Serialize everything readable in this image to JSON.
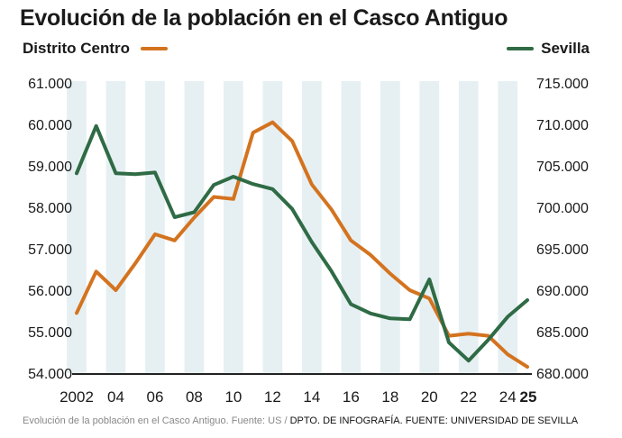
{
  "title": "Evolución de la población en el Casco Antiguo",
  "footer": {
    "source": "Evolución de la población en el Casco Antiguo. Fuente: US /",
    "org": "DPTO. DE INFOGRAFÍA. FUENTE: UNIVERSIDAD DE SEVILLA"
  },
  "colors": {
    "centro": "#d4731f",
    "sevilla": "#2f6b45",
    "band": "#e6f0f3",
    "axis": "#222222"
  },
  "chart_data": {
    "type": "line",
    "x": [
      2002,
      2003,
      2004,
      2005,
      2006,
      2007,
      2008,
      2009,
      2010,
      2011,
      2012,
      2013,
      2014,
      2015,
      2016,
      2017,
      2018,
      2019,
      2020,
      2021,
      2022,
      2023,
      2024,
      2025
    ],
    "x_tick_labels": [
      {
        "x": 2002,
        "label": "2002"
      },
      {
        "x": 2004,
        "label": "04"
      },
      {
        "x": 2006,
        "label": "06"
      },
      {
        "x": 2008,
        "label": "08"
      },
      {
        "x": 2010,
        "label": "10"
      },
      {
        "x": 2012,
        "label": "12"
      },
      {
        "x": 2014,
        "label": "14"
      },
      {
        "x": 2016,
        "label": "16"
      },
      {
        "x": 2018,
        "label": "18"
      },
      {
        "x": 2020,
        "label": "20"
      },
      {
        "x": 2022,
        "label": "22"
      },
      {
        "x": 2024,
        "label": "24"
      },
      {
        "x": 2025,
        "label": "25"
      }
    ],
    "y_left": {
      "ylim": [
        54000,
        61000
      ],
      "ticks": [
        54000,
        55000,
        56000,
        57000,
        58000,
        59000,
        60000,
        61000
      ],
      "tick_labels": [
        "54.000",
        "55.000",
        "56.000",
        "57.000",
        "58.000",
        "59.000",
        "60.000",
        "61.000"
      ]
    },
    "y_right": {
      "ylim": [
        680000,
        715000
      ],
      "ticks": [
        680000,
        685000,
        690000,
        695000,
        700000,
        705000,
        710000,
        715000
      ],
      "tick_labels": [
        "680.000",
        "685.000",
        "690.000",
        "695.000",
        "700.000",
        "705.000",
        "710.000",
        "715.000"
      ]
    },
    "series": [
      {
        "name": "Distrito Centro",
        "axis": "left",
        "color": "#d4731f",
        "values": [
          55450,
          56450,
          56000,
          56650,
          57350,
          57200,
          57750,
          58250,
          58200,
          59800,
          60050,
          59600,
          58550,
          57950,
          57200,
          56850,
          56400,
          56000,
          55800,
          54900,
          54950,
          54900,
          54450,
          54150
        ]
      },
      {
        "name": "Sevilla",
        "axis": "right",
        "color": "#2f6b45",
        "values": [
          704100,
          709800,
          704100,
          704000,
          704200,
          698800,
          699400,
          702700,
          703700,
          702800,
          702200,
          699800,
          695800,
          692300,
          688300,
          687200,
          686600,
          686500,
          691300,
          683700,
          681500,
          684000,
          686800,
          688800
        ]
      }
    ],
    "grid": false,
    "legend": "top"
  }
}
